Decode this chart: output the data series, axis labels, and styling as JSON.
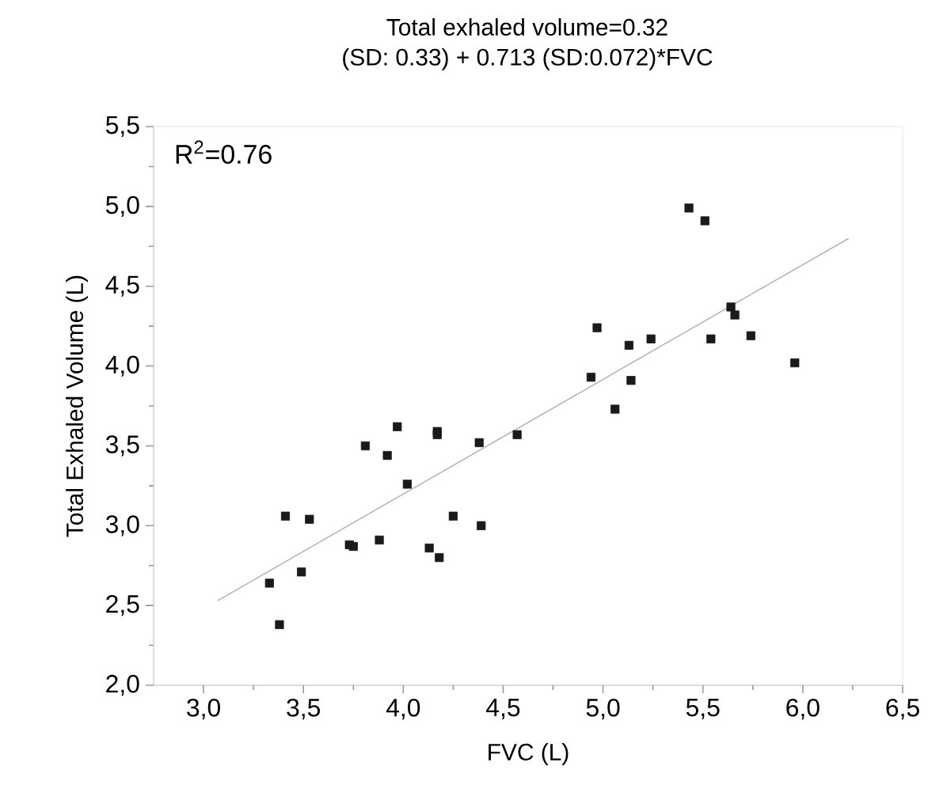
{
  "chart_data": {
    "type": "scatter",
    "title": "Total exhaled volume=0.32",
    "subtitle": "(SD: 0.33) + 0.713 (SD:0.072)*FVC",
    "xlabel": "FVC (L)",
    "ylabel": "Total Exhaled Volume (L)",
    "annotations": [
      "R$^{2}$=0.76"
    ],
    "series": [
      {
        "color": "#1a1a1a",
        "marker": "square",
        "x": [
          3.33,
          3.38,
          3.41,
          3.49,
          3.53,
          3.73,
          3.75,
          3.81,
          3.88,
          3.92,
          3.97,
          4.02,
          4.13,
          4.17,
          4.17,
          4.18,
          4.25,
          4.38,
          4.39,
          4.57,
          4.94,
          4.97,
          5.06,
          5.13,
          5.14,
          5.24,
          5.43,
          5.51,
          5.54,
          5.64,
          5.66,
          5.74,
          5.96
        ],
        "values": [
          2.64,
          2.38,
          3.06,
          2.71,
          3.04,
          2.88,
          2.87,
          3.5,
          2.91,
          3.44,
          3.62,
          3.26,
          2.86,
          3.59,
          3.57,
          2.8,
          3.06,
          3.52,
          3.0,
          3.57,
          3.93,
          4.24,
          3.73,
          4.13,
          3.91,
          4.17,
          4.99,
          4.91,
          4.17,
          4.37,
          4.32,
          4.19,
          4.02
        ]
      },
      {
        "type": "line",
        "color": "#b4b4b4",
        "marker": "none",
        "line_style": "solid",
        "x": [
          3.07,
          6.23
        ],
        "values": [
          2.53,
          4.8
        ]
      }
    ],
    "xlim": [
      2.75,
      6.5
    ],
    "ylim": [
      2.0,
      5.5
    ],
    "xticks": [
      {
        "value": 3.0,
        "label": "3,0"
      },
      {
        "value": 3.5,
        "label": "3,5"
      },
      {
        "value": 4.0,
        "label": "4,0"
      },
      {
        "value": 4.5,
        "label": "4,5"
      },
      {
        "value": 5.0,
        "label": "5,0"
      },
      {
        "value": 5.5,
        "label": "5,5"
      },
      {
        "value": 6.0,
        "label": "6,0"
      },
      {
        "value": 6.5,
        "label": "6,5"
      }
    ],
    "yticks": [
      {
        "value": 2.0,
        "label": "2,0"
      },
      {
        "value": 2.5,
        "label": "2,5"
      },
      {
        "value": 3.0,
        "label": "3,0"
      },
      {
        "value": 3.5,
        "label": "3,5"
      },
      {
        "value": 4.0,
        "label": "4,0"
      },
      {
        "value": 4.5,
        "label": "4,5"
      },
      {
        "value": 5.0,
        "label": "5,0"
      },
      {
        "value": 5.5,
        "label": "5,5"
      }
    ]
  }
}
